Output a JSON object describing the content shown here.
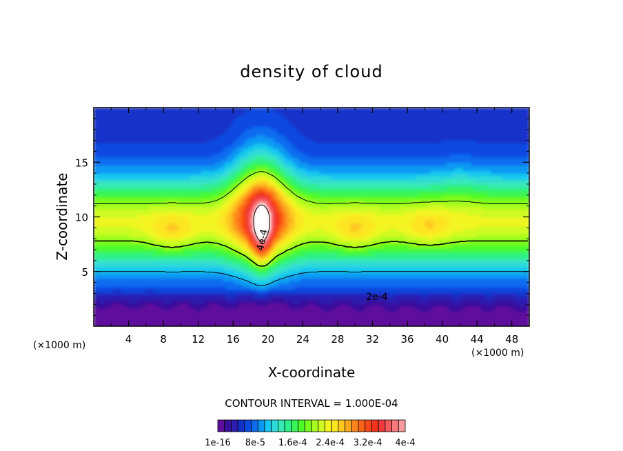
{
  "chart_data": {
    "type": "heatmap",
    "subtype": "filled-contour",
    "title": "density of cloud",
    "xlabel": "X-coordinate",
    "ylabel": "Z-coordinate",
    "x_unit_note": "(×1000 m)",
    "z_unit_note": "(×1000 m)",
    "xlim": [
      0,
      50
    ],
    "ylim": [
      0,
      20
    ],
    "x_ticks": [
      4,
      8,
      12,
      16,
      20,
      24,
      28,
      32,
      36,
      40,
      44,
      48
    ],
    "y_ticks": [
      5,
      10,
      15
    ],
    "contour_interval_text": "CONTOUR INTERVAL = 1.000E-04",
    "contour_lines": [
      {
        "level_label": "2e-4",
        "label_x": 32.5,
        "label_z": 2.7
      },
      {
        "level_label": "4e-4",
        "label_x": 19.3,
        "label_z": 7.9
      }
    ],
    "colorbar": {
      "labels": [
        "1e-16",
        "8e-5",
        "1.6e-4",
        "2.4e-4",
        "3.2e-4",
        "4e-4"
      ],
      "colors": [
        "#5e0f9c",
        "#39109c",
        "#2a1db0",
        "#1230c8",
        "#0a4ae0",
        "#0c6cf0",
        "#0b98f3",
        "#13c7f0",
        "#2ddad8",
        "#38e8b8",
        "#2df08a",
        "#38f55a",
        "#4cfa2a",
        "#79fc1c",
        "#a6fd1d",
        "#cffb22",
        "#f2f520",
        "#fde520",
        "#fdc720",
        "#fda81f",
        "#fd851c",
        "#fb6319",
        "#f84718",
        "#f3341c",
        "#f2393c",
        "#f55a5c",
        "#f97a7e",
        "#fb9a9d"
      ]
    }
  }
}
